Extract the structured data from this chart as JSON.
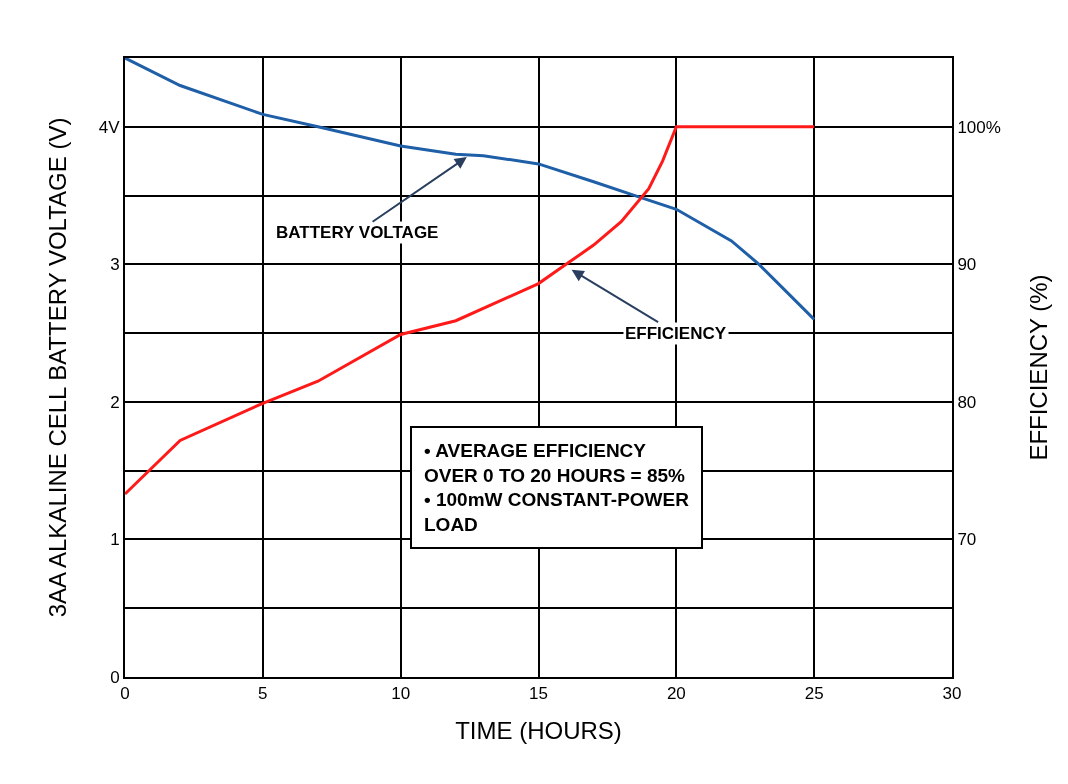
{
  "chart_data": {
    "type": "line",
    "xlabel": "TIME (HOURS)",
    "ylabel": "3AA ALKALINE CELL BATTERY VOLTAGE (V)",
    "y2label": "EFFICIENCY (%)",
    "series": [
      {
        "color": "#1f5fa8",
        "x": [
          0,
          2,
          5,
          7,
          10,
          12,
          13,
          15,
          17,
          18.5,
          20,
          22,
          23,
          24,
          25
        ],
        "values": [
          4.5,
          4.3,
          4.09,
          4.0,
          3.86,
          3.8,
          3.79,
          3.73,
          3.6,
          3.5,
          3.4,
          3.17,
          3.0,
          2.8,
          2.6
        ]
      },
      {
        "color": "#ff1a1a",
        "axis": "y2",
        "x": [
          0,
          2,
          5,
          7,
          10,
          12,
          15,
          16,
          17,
          18,
          19,
          19.5,
          20,
          25
        ],
        "values": [
          73.3,
          77.2,
          79.9,
          81.5,
          84.9,
          85.9,
          88.6,
          90,
          91.4,
          93.1,
          95.5,
          97.5,
          100,
          100
        ]
      }
    ],
    "xlim": [
      0,
      30
    ],
    "xticks": [
      0,
      5,
      10,
      15,
      20,
      25,
      30
    ],
    "ylim": [
      0,
      4.5
    ],
    "yticks": [
      0,
      {
        "value": 0.5,
        "label": null
      },
      1,
      {
        "value": 1.5,
        "label": null
      },
      2,
      {
        "value": 2.5,
        "label": null
      },
      3,
      {
        "value": 3.5,
        "label": null
      },
      {
        "value": 4,
        "label": "4V"
      }
    ],
    "y2lim": [
      60,
      105
    ],
    "y2ticks": [
      70,
      80,
      90,
      {
        "value": 100,
        "label": "100%"
      }
    ],
    "annotations": [
      {
        "text": "BATTERY VOLTAGE",
        "x": 12.4,
        "y": 3.78
      },
      "EFFICIENCY",
      "• AVERAGE EFFICIENCY\nOVER 0 TO 20 HOURS = 85%\n• 100mW CONSTANT-POWER\nLOAD"
    ],
    "grid": true,
    "legend": false,
    "line_style": "solid",
    "marker": "none"
  }
}
